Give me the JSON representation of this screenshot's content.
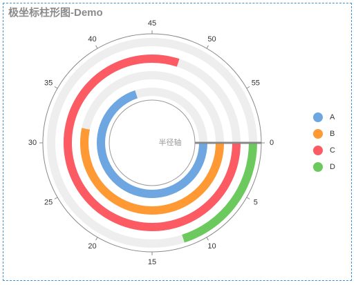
{
  "chart_data": {
    "type": "bar",
    "coordinate": "polar",
    "title": "极坐标柱形图-Demo",
    "radius_axis_label": "半径轴",
    "angle_axis": {
      "min": 0,
      "max": 60,
      "ticks": [
        0,
        5,
        10,
        15,
        20,
        25,
        30,
        35,
        40,
        45,
        50,
        55
      ],
      "direction": "clockwise",
      "zero_position": "right"
    },
    "series": [
      {
        "name": "A",
        "value": 42,
        "color": "#6da6e0"
      },
      {
        "name": "B",
        "value": 32,
        "color": "#ff9933"
      },
      {
        "name": "C",
        "value": 48,
        "color": "#fc5b64"
      },
      {
        "name": "D",
        "value": 12,
        "color": "#6cc95e"
      }
    ],
    "background_track_color": "#eeeeee",
    "legend_placement": "right"
  }
}
